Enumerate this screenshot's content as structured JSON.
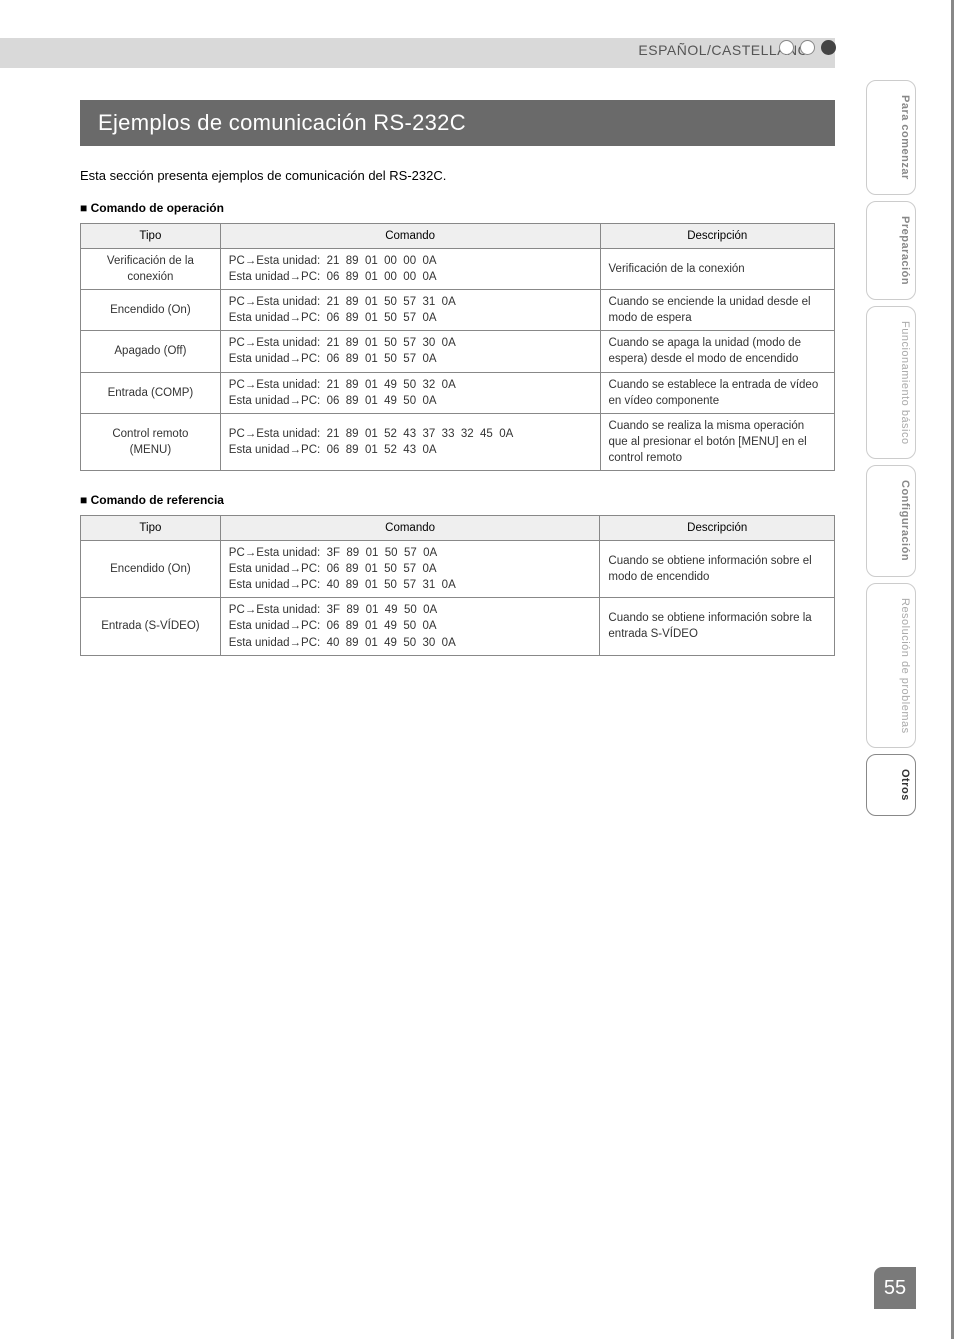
{
  "header": {
    "language_label": "ESPAÑOL/CASTELLANO"
  },
  "title": "Ejemplos de comunicación RS-232C",
  "intro": "Esta sección presenta ejemplos de comunicación del RS-232C.",
  "section1": {
    "heading": "Comando de operación",
    "columns": {
      "c1": "Tipo",
      "c2": "Comando",
      "c3": "Descripción"
    },
    "rows": [
      {
        "type": "Verificación de la\nconexión",
        "cmd": "PC→Esta unidad:  21  89  01  00  00  0A\nEsta unidad→PC:  06  89  01  00  00  0A",
        "desc": "Verificación de la conexión"
      },
      {
        "type": "Encendido (On)",
        "cmd": "PC→Esta unidad:  21  89  01  50  57  31  0A\nEsta unidad→PC:  06  89  01  50  57  0A",
        "desc": "Cuando se enciende la unidad desde el modo de espera"
      },
      {
        "type": "Apagado (Off)",
        "cmd": "PC→Esta unidad:  21  89  01  50  57  30  0A\nEsta unidad→PC:  06  89  01  50  57  0A",
        "desc": "Cuando se apaga la unidad (modo de espera) desde el modo de encendido"
      },
      {
        "type": "Entrada (COMP)",
        "cmd": "PC→Esta unidad:  21  89  01  49  50  32  0A\nEsta unidad→PC:  06  89  01  49  50  0A",
        "desc": "Cuando se establece la entrada de vídeo en vídeo componente"
      },
      {
        "type": "Control remoto\n(MENU)",
        "cmd": "PC→Esta unidad:  21  89  01  52  43  37  33  32  45  0A\nEsta unidad→PC:  06  89  01  52  43  0A",
        "desc": "Cuando se realiza la misma operación que al presionar el botón [MENU] en el control remoto"
      }
    ]
  },
  "section2": {
    "heading": "Comando de referencia",
    "columns": {
      "c1": "Tipo",
      "c2": "Comando",
      "c3": "Descripción"
    },
    "rows": [
      {
        "type": "Encendido (On)",
        "cmd": "PC→Esta unidad:  3F  89  01  50  57  0A\nEsta unidad→PC:  06  89  01  50  57  0A\nEsta unidad→PC:  40  89  01  50  57  31  0A",
        "desc": "Cuando se obtiene información sobre el modo de encendido"
      },
      {
        "type": "Entrada (S-VÍDEO)",
        "cmd": "PC→Esta unidad:  3F  89  01  49  50  0A\nEsta unidad→PC:  06  89  01  49  50  0A\nEsta unidad→PC:  40  89  01  49  50  30  0A",
        "desc": "Cuando se obtiene información sobre la entrada S-VÍDEO"
      }
    ]
  },
  "side_tabs": [
    {
      "label": "Para comenzar",
      "style": "bold"
    },
    {
      "label": "Preparación",
      "style": "bold"
    },
    {
      "label": "Funcionamiento básico",
      "style": "normal"
    },
    {
      "label": "Configuración",
      "style": "bold"
    },
    {
      "label": "Resolución de problemas",
      "style": "normal"
    },
    {
      "label": "Otros",
      "style": "active"
    }
  ],
  "page_number": "55"
}
